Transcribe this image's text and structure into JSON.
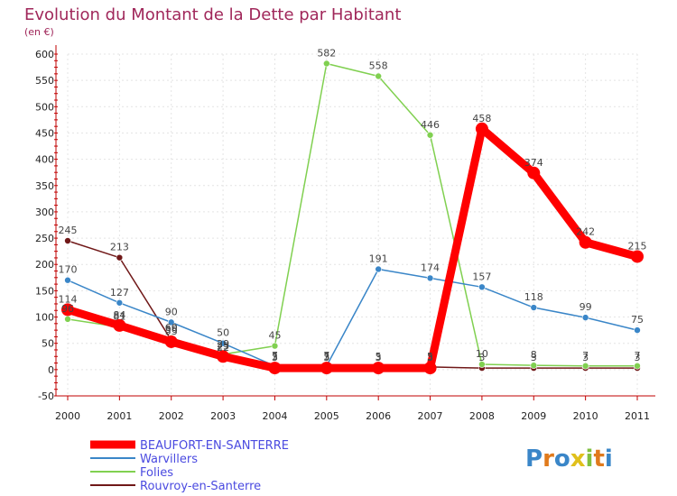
{
  "chart_data": {
    "type": "line",
    "title": "Evolution du Montant de la Dette par Habitant",
    "subtitle": "(en €)",
    "xlabel": "",
    "ylabel": "",
    "x": [
      "2000",
      "2001",
      "2002",
      "2003",
      "2004",
      "2005",
      "2006",
      "2007",
      "2008",
      "2009",
      "2010",
      "2011"
    ],
    "ylim": [
      -50,
      600
    ],
    "yticks": [
      -50,
      0,
      50,
      100,
      150,
      200,
      250,
      300,
      350,
      400,
      450,
      500,
      550,
      600
    ],
    "grid": true,
    "legend_position": "bottom-left",
    "series": [
      {
        "name": "BEAUFORT-EN-SANTERRE",
        "color": "#ff0000",
        "values": [
          114,
          84,
          53,
          25,
          3,
          3,
          3,
          3,
          458,
          374,
          242,
          215
        ],
        "labels": [
          "114",
          "84",
          "53",
          "25",
          "3",
          "3",
          "3",
          "3",
          "458",
          "374",
          "242",
          "215"
        ]
      },
      {
        "name": "Warvillers",
        "color": "#3a86c8",
        "values": [
          170,
          127,
          90,
          50,
          7,
          7,
          191,
          174,
          157,
          118,
          99,
          75
        ],
        "labels": [
          "170",
          "127",
          "90",
          "50",
          "7",
          "7",
          "191",
          "174",
          "157",
          "118",
          "99",
          "75"
        ]
      },
      {
        "name": "Folies",
        "color": "#80d050",
        "values": [
          96,
          81,
          60,
          29,
          45,
          582,
          558,
          446,
          10,
          8,
          7,
          7
        ],
        "labels": [
          "96",
          "81",
          "60",
          "29",
          "45",
          "582",
          "558",
          "446",
          "10",
          "8",
          "7",
          "7"
        ]
      },
      {
        "name": "Rouvroy-en-Santerre",
        "color": "#701818",
        "values": [
          245,
          213,
          56,
          22,
          5,
          5,
          5,
          5,
          3,
          3,
          3,
          3
        ],
        "labels": [
          "245",
          "213",
          "56",
          "22",
          "5",
          "5",
          "5",
          "5",
          "3",
          "3",
          "3",
          "3"
        ]
      }
    ]
  },
  "logo": {
    "text": "Proxiti"
  }
}
